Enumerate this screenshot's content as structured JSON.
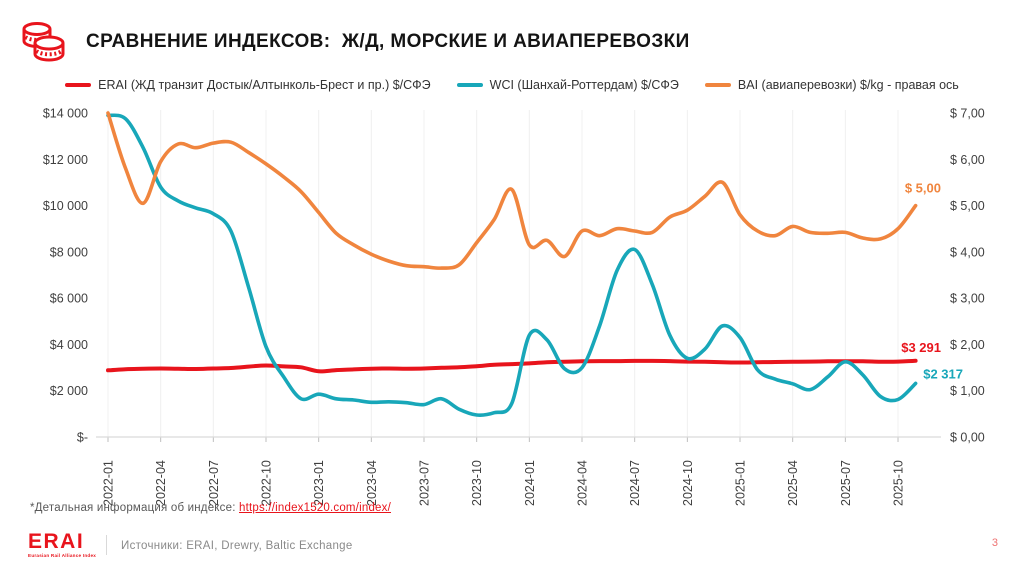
{
  "header": {
    "title": "СРАВНЕНИЕ ИНДЕКСОВ:  Ж/Д, МОРСКИЕ И АВИАПЕРЕВОЗКИ",
    "icon": "coins-icon"
  },
  "colors": {
    "erai_red": "#e8141c",
    "wci_teal": "#18a7b9",
    "bai_orange": "#f0853e",
    "grid": "#f0f0f0",
    "axis_line": "#d9d9d9",
    "tick_mark": "#bfbfbf",
    "tick_text": "#404040"
  },
  "chart_data": {
    "type": "line",
    "title": "СРАВНЕНИЕ ИНДЕКСОВ: Ж/Д, МОРСКИЕ И АВИАПЕРЕВОЗКИ",
    "legend_position": "top",
    "grid": "faint-vertical",
    "months": [
      "2022-01",
      "2022-02",
      "2022-03",
      "2022-04",
      "2022-05",
      "2022-06",
      "2022-07",
      "2022-08",
      "2022-09",
      "2022-10",
      "2022-11",
      "2022-12",
      "2023-01",
      "2023-02",
      "2023-03",
      "2023-04",
      "2023-05",
      "2023-06",
      "2023-07",
      "2023-08",
      "2023-09",
      "2023-10",
      "2023-11",
      "2023-12",
      "2024-01",
      "2024-02",
      "2024-03",
      "2024-04",
      "2024-05",
      "2024-06",
      "2024-07",
      "2024-08",
      "2024-09",
      "2024-10",
      "2024-11",
      "2024-12",
      "2025-01",
      "2025-02",
      "2025-03",
      "2025-04",
      "2025-05",
      "2025-06",
      "2025-07",
      "2025-08",
      "2025-09",
      "2025-10",
      "2025-11"
    ],
    "x_ticks": [
      "2022-01",
      "2022-04",
      "2022-07",
      "2022-10",
      "2023-01",
      "2023-04",
      "2023-07",
      "2023-10",
      "2024-01",
      "2024-04",
      "2024-07",
      "2024-10",
      "2025-01",
      "2025-04",
      "2025-07",
      "2025-10"
    ],
    "left_axis": {
      "title": "$/СФЭ",
      "range": [
        0,
        14000
      ],
      "tick_labels": [
        "$14 000",
        "$12 000",
        "$10 000",
        "$8 000",
        "$6 000",
        "$4 000",
        "$2 000",
        "$-"
      ],
      "tick_values": [
        14000,
        12000,
        10000,
        8000,
        6000,
        4000,
        2000,
        0
      ]
    },
    "right_axis": {
      "title": "$/kg",
      "range": [
        0,
        7
      ],
      "tick_labels": [
        "$ 7,00",
        "$ 6,00",
        "$ 5,00",
        "$ 4,00",
        "$ 3,00",
        "$ 2,00",
        "$ 1,00",
        "$ 0,00"
      ],
      "tick_values": [
        7,
        6,
        5,
        4,
        3,
        2,
        1,
        0
      ]
    },
    "series": [
      {
        "name": "ERAI (ЖД транзит Достык/Алтынколь-Брест и пр.)  $/СФЭ",
        "axis": "left",
        "color": "#e8141c",
        "width": 4,
        "end_label": "$3 291",
        "values": [
          2880,
          2930,
          2950,
          2960,
          2950,
          2940,
          2960,
          2980,
          3040,
          3090,
          3050,
          3010,
          2840,
          2890,
          2920,
          2950,
          2960,
          2950,
          2960,
          2990,
          3010,
          3060,
          3120,
          3150,
          3180,
          3230,
          3250,
          3270,
          3280,
          3280,
          3290,
          3290,
          3280,
          3260,
          3250,
          3230,
          3220,
          3230,
          3240,
          3250,
          3260,
          3270,
          3270,
          3270,
          3250,
          3260,
          3291
        ]
      },
      {
        "name": "WCI (Шанхай-Роттердам) $/СФЭ",
        "axis": "left",
        "color": "#18a7b9",
        "width": 3.6,
        "end_label": "$2 317",
        "values": [
          13900,
          13750,
          12500,
          10800,
          10200,
          9900,
          9650,
          8900,
          6500,
          3900,
          2600,
          1650,
          1850,
          1650,
          1600,
          1500,
          1520,
          1480,
          1400,
          1650,
          1200,
          950,
          1050,
          1450,
          4400,
          4200,
          2950,
          3000,
          4800,
          7200,
          8100,
          6600,
          4400,
          3400,
          3800,
          4800,
          4300,
          2900,
          2500,
          2300,
          2050,
          2600,
          3250,
          2680,
          1750,
          1620,
          2317
        ]
      },
      {
        "name": "BAI (авиаперевозки) $/kg - правая ось",
        "axis": "right",
        "color": "#f0853e",
        "width": 3.6,
        "end_label": "$ 5,00",
        "values": [
          7.0,
          5.8,
          5.05,
          5.95,
          6.33,
          6.25,
          6.35,
          6.37,
          6.15,
          5.9,
          5.62,
          5.3,
          4.85,
          4.4,
          4.15,
          3.95,
          3.8,
          3.7,
          3.68,
          3.65,
          3.72,
          4.2,
          4.7,
          5.35,
          4.15,
          4.25,
          3.9,
          4.45,
          4.35,
          4.5,
          4.45,
          4.42,
          4.75,
          4.9,
          5.2,
          5.5,
          4.8,
          4.45,
          4.35,
          4.55,
          4.42,
          4.4,
          4.42,
          4.3,
          4.28,
          4.5,
          5.0
        ]
      }
    ]
  },
  "footnote": {
    "prefix": "*Детальная информация об индексе: ",
    "link": "https://index1520.com/index/"
  },
  "footer": {
    "logo": "ERAI",
    "logo_sub": "Eurasian Rail Alliance Index",
    "sources": "Источники: ERAI, Drewry, Baltic Exchange",
    "page": "3"
  }
}
